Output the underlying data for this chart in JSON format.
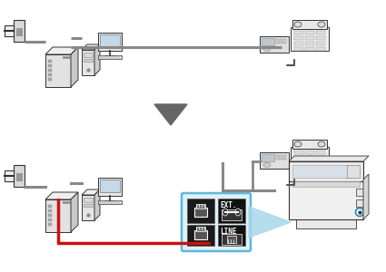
{
  "bg_color": "#ffffff",
  "gray_line": "#888888",
  "dark_gray_line": "#555555",
  "red_line": "#cc1111",
  "blue_fill": "#a8d8ea",
  "highlight_border": "#60b8d8",
  "ext_bg": "#111111",
  "ext_text": "#ffffff",
  "device_light": "#f0f0f0",
  "device_mid": "#d8d8d8",
  "device_dark": "#bbbbbb",
  "stroke": "#333333",
  "stroke_light": "#888888",
  "wall_fill": "#e8e8e8",
  "arrow_fill": "#666666"
}
